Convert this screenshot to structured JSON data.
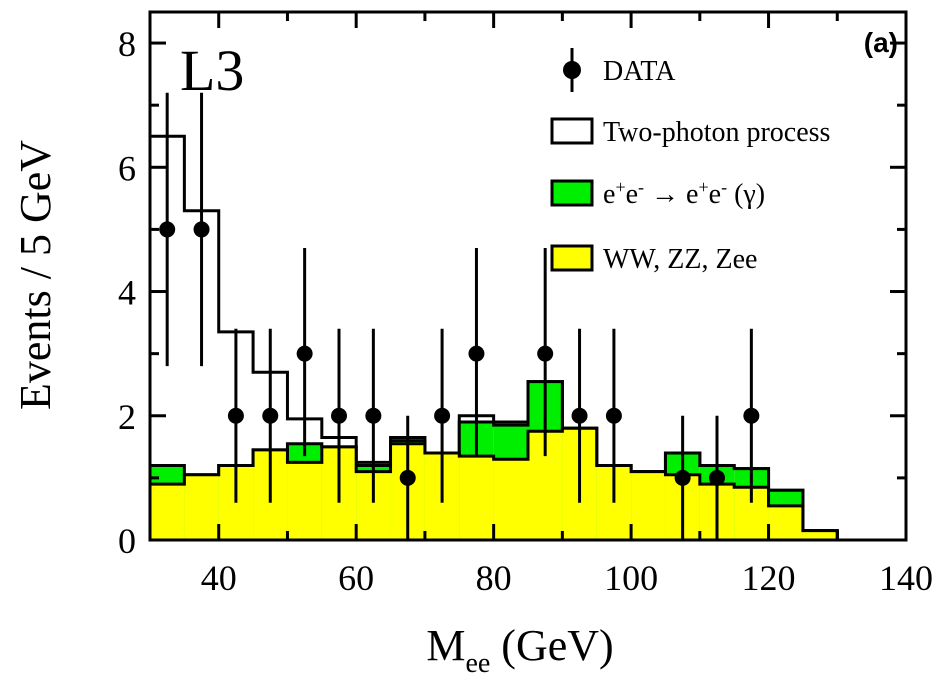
{
  "chart_data": {
    "type": "bar",
    "panel_label": "(a)",
    "experiment_label": "L3",
    "ylabel": "Events / 5 GeV",
    "xlabel_main": "M",
    "xlabel_sub": "ee",
    "xlabel_unit": " (GeV)",
    "xlim": [
      30,
      140
    ],
    "ylim": [
      0,
      8.5
    ],
    "x_ticks": [
      40,
      60,
      80,
      100,
      120,
      140
    ],
    "y_ticks": [
      0,
      2,
      4,
      6,
      8
    ],
    "bin_edges": [
      30,
      35,
      40,
      45,
      50,
      55,
      60,
      65,
      70,
      75,
      80,
      85,
      90,
      95,
      100,
      105,
      110,
      115,
      120,
      125,
      130,
      135,
      140
    ],
    "series": [
      {
        "name": "WW, ZZ, Zee",
        "color": "#ffff00",
        "values": [
          0.9,
          1.05,
          1.2,
          1.45,
          1.25,
          1.5,
          1.1,
          1.55,
          1.4,
          1.35,
          1.3,
          1.75,
          1.8,
          1.2,
          1.1,
          1.05,
          0.9,
          0.85,
          0.55,
          0.15,
          0.0,
          0.0
        ]
      },
      {
        "name": "e+e- → e+e- (γ)",
        "color": "#00ee00",
        "values": [
          1.2,
          1.05,
          1.2,
          1.45,
          1.55,
          1.5,
          1.2,
          1.6,
          1.4,
          1.9,
          1.85,
          2.55,
          1.8,
          1.2,
          1.1,
          1.4,
          1.2,
          1.15,
          0.8,
          0.15,
          0.0,
          0.0
        ]
      },
      {
        "name": "Two-photon process",
        "color": "#ffffff",
        "values": [
          6.5,
          5.3,
          3.35,
          2.7,
          1.95,
          1.65,
          1.25,
          1.65,
          1.4,
          2.0,
          1.9,
          2.55,
          1.8,
          1.2,
          1.1,
          1.4,
          1.2,
          1.15,
          0.8,
          0.15,
          0.0,
          0.0
        ]
      }
    ],
    "data_points": {
      "name": "DATA",
      "x": [
        32.5,
        37.5,
        42.5,
        47.5,
        52.5,
        57.5,
        62.5,
        67.5,
        72.5,
        77.5,
        87.5,
        92.5,
        97.5,
        107.5,
        112.5,
        117.5
      ],
      "y": [
        5,
        5,
        2,
        2,
        3,
        2,
        2,
        1,
        2,
        3,
        3,
        2,
        2,
        1,
        1,
        2
      ],
      "err_low": [
        2.2,
        2.2,
        1.4,
        1.4,
        1.65,
        1.4,
        1.4,
        1.0,
        1.4,
        1.65,
        1.65,
        1.4,
        1.4,
        1.0,
        1.0,
        1.4
      ],
      "err_high": [
        2.2,
        2.2,
        1.4,
        1.4,
        1.7,
        1.4,
        1.4,
        1.0,
        1.4,
        1.7,
        1.7,
        1.4,
        1.4,
        1.0,
        1.0,
        1.4
      ]
    },
    "legend": [
      {
        "label": "DATA",
        "kind": "marker"
      },
      {
        "label": "Two-photon process",
        "kind": "box",
        "color": "#ffffff"
      },
      {
        "label_parts": [
          "e",
          "+",
          "e",
          "-",
          " → e",
          "+",
          "e",
          "-",
          " (γ)"
        ],
        "kind": "box",
        "color": "#00ee00"
      },
      {
        "label": "WW, ZZ, Zee",
        "kind": "box",
        "color": "#ffff00"
      }
    ]
  }
}
